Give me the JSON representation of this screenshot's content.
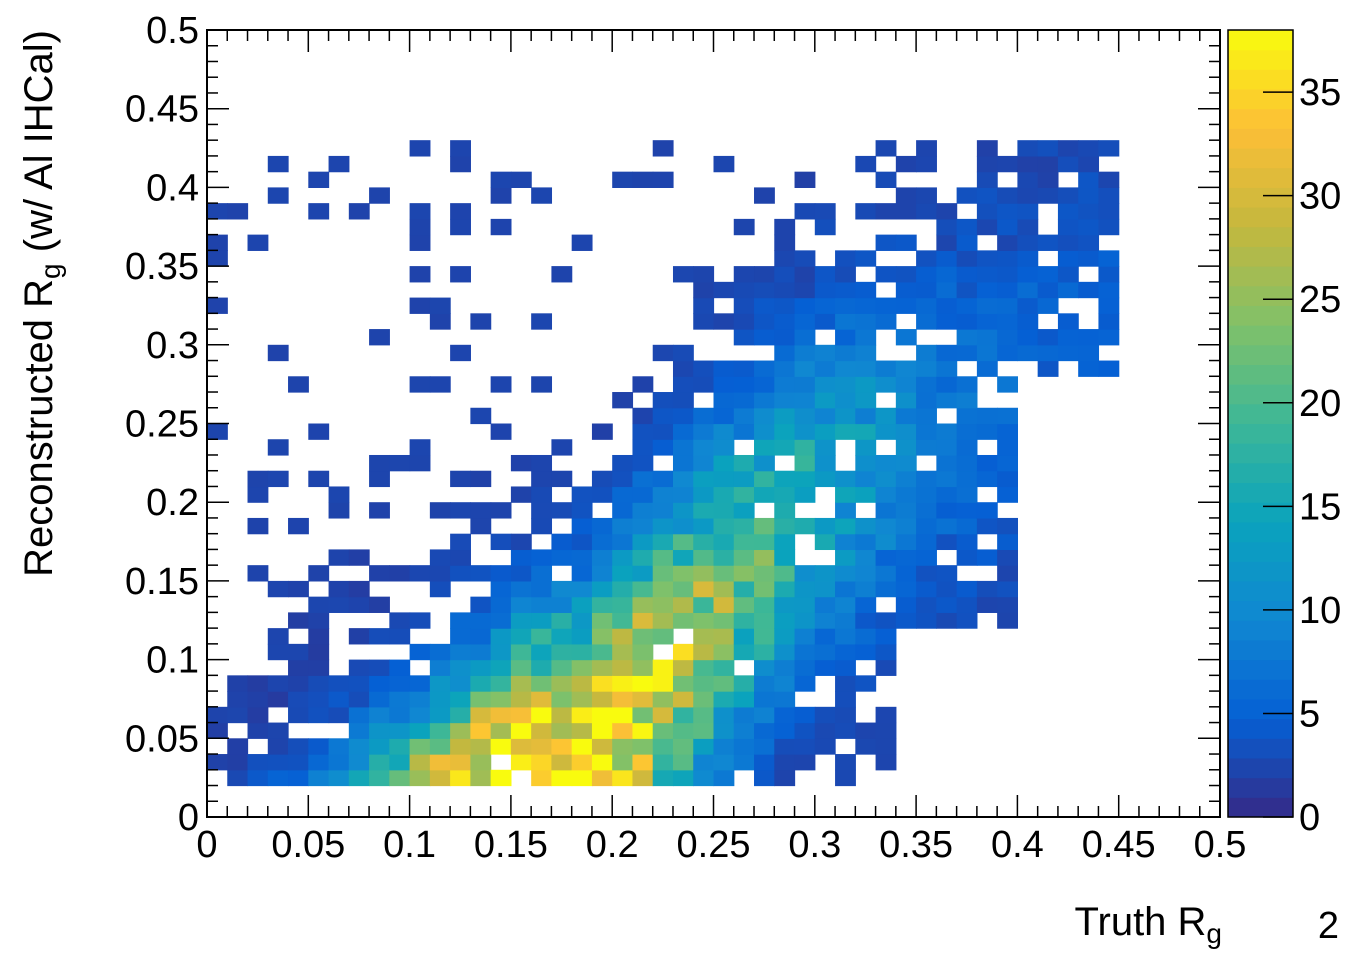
{
  "chart_data": {
    "type": "heatmap",
    "title": "",
    "xlabel": "Truth R",
    "xlabel_sub": "g",
    "ylabel_pre": "Reconstructed R",
    "ylabel_sub": "g",
    "ylabel_post": " (w/ Al IHCal)",
    "xlim": [
      0,
      0.5
    ],
    "ylim": [
      0,
      0.5
    ],
    "x_ticks": [
      "0",
      "0.05",
      "0.1",
      "0.15",
      "0.2",
      "0.25",
      "0.3",
      "0.35",
      "0.4",
      "0.45",
      "0.5"
    ],
    "y_ticks": [
      "0",
      "0.05",
      "0.1",
      "0.15",
      "0.2",
      "0.25",
      "0.3",
      "0.35",
      "0.4",
      "0.45",
      "0.5"
    ],
    "z_range": [
      0,
      38
    ],
    "z_ticks": [
      "0",
      "5",
      "10",
      "15",
      "20",
      "25",
      "30",
      "35"
    ],
    "colormap": "parula",
    "bin_width": 0.01,
    "grid": false,
    "legend": "colorbar-right",
    "bins": [
      {
        "x": 0.155,
        "y": 0.02
      },
      {
        "x": 0.165,
        "y": 0.025
      },
      {
        "x": 0.175,
        "y": 0.03
      },
      {
        "x": 0.19,
        "y": 0.04
      },
      {
        "x": 0.2,
        "y": 0.055
      },
      {
        "x": 0.21,
        "y": 0.07
      },
      {
        "x": 0.22,
        "y": 0.085
      },
      {
        "x": 0.23,
        "y": 0.1
      },
      {
        "x": 0.24,
        "y": 0.115
      },
      {
        "x": 0.25,
        "y": 0.13
      },
      {
        "x": 0.26,
        "y": 0.145
      },
      {
        "x": 0.27,
        "y": 0.16
      },
      {
        "x": 0.28,
        "y": 0.175
      },
      {
        "x": 0.29,
        "y": 0.19
      },
      {
        "x": 0.3,
        "y": 0.205
      },
      {
        "x": 0.32,
        "y": 0.22
      },
      {
        "x": 0.34,
        "y": 0.235
      },
      {
        "x": 0.36,
        "y": 0.25
      },
      {
        "x": 0.38,
        "y": 0.265
      },
      {
        "x": 0.4,
        "y": 0.28
      },
      {
        "x": 0.42,
        "y": 0.295
      }
    ]
  },
  "page_number": "2"
}
